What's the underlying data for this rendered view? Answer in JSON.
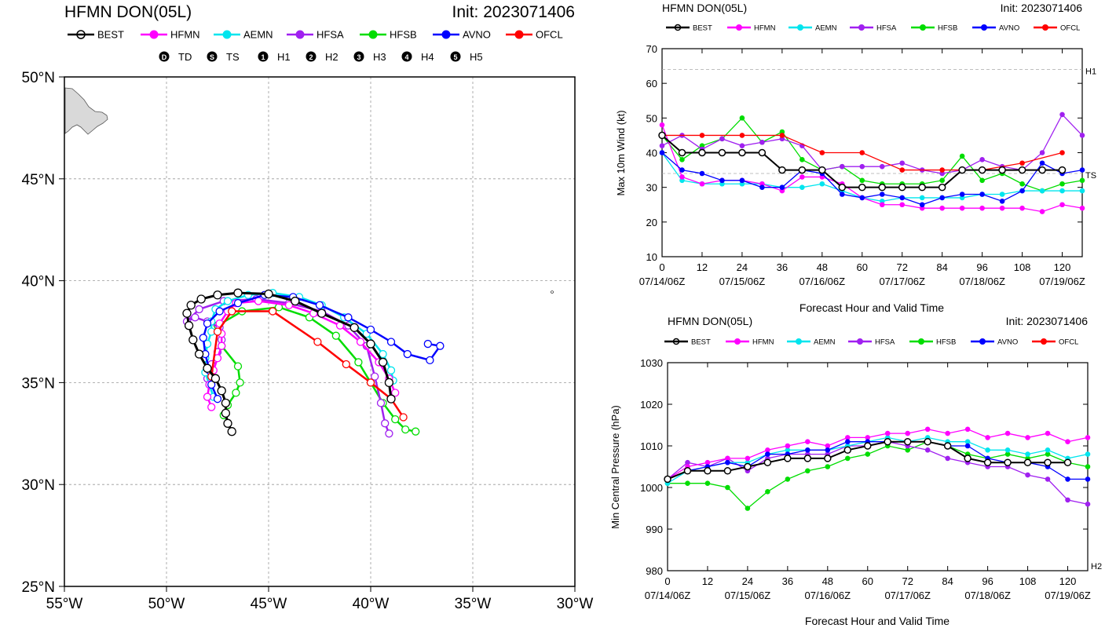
{
  "colors": {
    "BEST": "#000000",
    "HFMN": "#ff00ff",
    "AEMN": "#00e5ee",
    "HFSA": "#a020f0",
    "HFSB": "#00dd00",
    "AVNO": "#0000ff",
    "OFCL": "#ff0000"
  },
  "legend": [
    "BEST",
    "HFMN",
    "AEMN",
    "HFSA",
    "HFSB",
    "AVNO",
    "OFCL"
  ],
  "map": {
    "title": "HFMN DON(05L)",
    "init": "Init: 2023071406",
    "intensity_legend": [
      {
        "sym": "D",
        "label": "TD"
      },
      {
        "sym": "S",
        "label": "TS"
      },
      {
        "sym": "1",
        "label": "H1"
      },
      {
        "sym": "2",
        "label": "H2"
      },
      {
        "sym": "3",
        "label": "H3"
      },
      {
        "sym": "4",
        "label": "H4"
      },
      {
        "sym": "5",
        "label": "H5"
      }
    ],
    "lon_labels": [
      "55°W",
      "50°W",
      "45°W",
      "40°W",
      "35°W",
      "30°W"
    ],
    "lat_labels": [
      "50°N",
      "45°N",
      "40°N",
      "35°N",
      "30°N",
      "25°N"
    ]
  },
  "wind": {
    "title": "HFMN DON(05L)",
    "init": "Init: 2023071406",
    "ylabel": "Max 10m Wind (kt)",
    "xlabel": "Forecast Hour and Valid Time",
    "yticks": [
      "10",
      "20",
      "30",
      "40",
      "50",
      "60",
      "70"
    ],
    "xticks": [
      "0",
      "12",
      "24",
      "36",
      "48",
      "60",
      "72",
      "84",
      "96",
      "108",
      "120"
    ],
    "dates": [
      "07/14/06Z",
      "07/15/06Z",
      "07/16/06Z",
      "07/17/06Z",
      "07/18/06Z",
      "07/19/06Z"
    ],
    "ref_labels": [
      "H1",
      "TS"
    ]
  },
  "pres": {
    "title": "HFMN DON(05L)",
    "init": "Init: 2023071406",
    "ylabel": "Min Central Pressure (hPa)",
    "xlabel": "Forecast Hour and Valid Time",
    "yticks": [
      "980",
      "990",
      "1000",
      "1010",
      "1020",
      "1030"
    ],
    "xticks": [
      "0",
      "12",
      "24",
      "36",
      "48",
      "60",
      "72",
      "84",
      "96",
      "108",
      "120"
    ],
    "dates": [
      "07/14/06Z",
      "07/15/06Z",
      "07/16/06Z",
      "07/17/06Z",
      "07/18/06Z",
      "07/19/06Z"
    ],
    "ref_labels": [
      "H2"
    ]
  },
  "chart_data": [
    {
      "type": "scatter",
      "title": "HFMN DON(05L)",
      "xlim": [
        -55,
        -30
      ],
      "ylim": [
        25,
        50
      ],
      "series": [
        {
          "name": "BEST",
          "lon": [
            -46.8,
            -47.0,
            -47.1,
            -47.1,
            -47.3,
            -47.6,
            -48.0,
            -48.4,
            -48.7,
            -48.9,
            -49.0,
            -48.8,
            -48.3,
            -47.5,
            -46.5,
            -45.0,
            -43.7,
            -42.4,
            -40.8,
            -40.0,
            -39.4,
            -39.1,
            -39.0
          ],
          "lat": [
            32.6,
            33.0,
            33.5,
            34.0,
            34.6,
            35.2,
            35.7,
            36.4,
            37.1,
            37.8,
            38.4,
            38.8,
            39.1,
            39.3,
            39.4,
            39.35,
            39.0,
            38.4,
            37.7,
            36.9,
            36.0,
            35.0,
            34.2
          ]
        },
        {
          "name": "HFMN",
          "lon": [
            -47.8,
            -48.0,
            -47.9,
            -47.7,
            -47.5,
            -47.3,
            -47.3,
            -47.4,
            -47.0,
            -46.6,
            -45.5,
            -44.0,
            -42.8,
            -41.5,
            -40.5,
            -39.6,
            -39.1,
            -38.8
          ],
          "lat": [
            33.8,
            34.3,
            34.9,
            35.6,
            36.2,
            36.8,
            37.4,
            37.9,
            38.5,
            38.9,
            39.0,
            38.8,
            38.4,
            37.8,
            37.0,
            36.0,
            35.2,
            34.5
          ]
        },
        {
          "name": "AEMN",
          "lon": [
            -47.7,
            -47.9,
            -48.1,
            -48.1,
            -48.0,
            -47.8,
            -47.8,
            -47.6,
            -47.0,
            -46.0,
            -44.8,
            -43.5,
            -42.4,
            -41.3,
            -40.2,
            -39.4,
            -39.0,
            -38.9
          ],
          "lat": [
            34.3,
            34.9,
            35.5,
            36.2,
            36.9,
            37.5,
            38.0,
            38.6,
            39.0,
            39.3,
            39.4,
            39.2,
            38.8,
            38.2,
            37.4,
            36.4,
            35.6,
            35.1
          ]
        },
        {
          "name": "HFSA",
          "lon": [
            -48.0,
            -47.8,
            -47.5,
            -47.3,
            -47.4,
            -48.0,
            -48.6,
            -49.0,
            -48.4,
            -47.2,
            -45.6,
            -44.0,
            -42.4,
            -41.1,
            -40.2,
            -39.8,
            -39.5,
            -39.3,
            -39.1
          ],
          "lat": [
            35.2,
            35.9,
            36.5,
            37.1,
            37.7,
            38.0,
            38.2,
            38.0,
            38.6,
            39.0,
            39.1,
            38.9,
            38.5,
            37.8,
            36.8,
            35.3,
            34.0,
            33.0,
            32.5
          ]
        },
        {
          "name": "HFSB",
          "lon": [
            -47.2,
            -47.0,
            -46.6,
            -46.4,
            -46.5,
            -47.3,
            -47.5,
            -46.3,
            -44.5,
            -43.0,
            -41.7,
            -40.6,
            -40.0,
            -39.4,
            -38.8,
            -38.3,
            -37.8
          ],
          "lat": [
            33.4,
            33.9,
            34.5,
            35.0,
            35.8,
            36.8,
            37.8,
            38.5,
            38.7,
            38.2,
            37.3,
            36.0,
            35.0,
            34.0,
            33.2,
            32.7,
            32.6
          ]
        },
        {
          "name": "AVNO",
          "lon": [
            -47.5,
            -47.8,
            -47.9,
            -48.1,
            -48.2,
            -48.0,
            -47.4,
            -46.5,
            -45.2,
            -43.8,
            -42.5,
            -41.1,
            -40.0,
            -39.0,
            -38.2,
            -37.1,
            -36.6,
            -37.2
          ],
          "lat": [
            34.2,
            34.9,
            35.6,
            36.4,
            37.2,
            37.9,
            38.5,
            38.9,
            39.3,
            39.2,
            38.8,
            38.2,
            37.6,
            37.0,
            36.4,
            36.1,
            36.8,
            36.9
          ]
        },
        {
          "name": "OFCL",
          "lon": [
            -47.8,
            -47.5,
            -46.8,
            -44.8,
            -42.6,
            -41.2,
            -40.0,
            -39.0,
            -38.4
          ],
          "lat": [
            35.3,
            37.5,
            38.5,
            38.5,
            37.0,
            35.9,
            35.0,
            34.2,
            33.3
          ]
        }
      ]
    },
    {
      "type": "line",
      "title": "HFMN DON(05L)",
      "xlabel": "Forecast Hour and Valid Time",
      "ylabel": "Max 10m Wind (kt)",
      "xlim": [
        0,
        126
      ],
      "ylim": [
        10,
        70
      ],
      "reference_lines": [
        {
          "label": "H1",
          "value": 64
        },
        {
          "label": "TS",
          "value": 34
        }
      ],
      "series": [
        {
          "name": "BEST",
          "x": [
            0,
            6,
            12,
            18,
            24,
            30,
            36,
            42,
            48,
            54,
            60,
            66,
            72,
            78,
            84,
            90,
            96,
            102,
            108,
            114,
            120
          ],
          "y": [
            45,
            40,
            40,
            40,
            40,
            40,
            35,
            35,
            35,
            30,
            30,
            30,
            30,
            30,
            30,
            35,
            35,
            35,
            35,
            35,
            35
          ]
        },
        {
          "name": "HFMN",
          "x": [
            0,
            6,
            12,
            18,
            24,
            30,
            36,
            42,
            48,
            54,
            60,
            66,
            72,
            78,
            84,
            90,
            96,
            102,
            108,
            114,
            120,
            126
          ],
          "y": [
            48,
            33,
            31,
            32,
            32,
            31,
            29,
            33,
            33,
            31,
            27,
            25,
            25,
            24,
            24,
            24,
            24,
            24,
            24,
            23,
            25,
            24
          ]
        },
        {
          "name": "AEMN",
          "x": [
            0,
            6,
            12,
            18,
            24,
            30,
            36,
            42,
            48,
            54,
            60,
            66,
            72,
            78,
            84,
            90,
            96,
            102,
            108,
            114,
            120,
            126
          ],
          "y": [
            40,
            32,
            31,
            31,
            31,
            31,
            30,
            30,
            31,
            29,
            27,
            26,
            27,
            27,
            27,
            27,
            28,
            28,
            29,
            29,
            29,
            29
          ]
        },
        {
          "name": "HFSA",
          "x": [
            0,
            6,
            12,
            18,
            24,
            30,
            36,
            42,
            48,
            54,
            60,
            66,
            72,
            78,
            84,
            90,
            96,
            102,
            108,
            114,
            120,
            126
          ],
          "y": [
            42,
            45,
            41,
            44,
            42,
            43,
            44,
            42,
            35,
            36,
            36,
            36,
            37,
            35,
            34,
            35,
            38,
            36,
            35,
            40,
            51,
            45
          ]
        },
        {
          "name": "HFSB",
          "x": [
            0,
            6,
            12,
            18,
            24,
            30,
            36,
            42,
            48,
            54,
            60,
            66,
            72,
            78,
            84,
            90,
            96,
            102,
            108,
            114,
            120,
            126
          ],
          "y": [
            45,
            38,
            42,
            44,
            50,
            43,
            46,
            38,
            35,
            36,
            32,
            31,
            31,
            31,
            32,
            39,
            32,
            34,
            31,
            29,
            31,
            32
          ]
        },
        {
          "name": "AVNO",
          "x": [
            0,
            6,
            12,
            18,
            24,
            30,
            36,
            42,
            48,
            54,
            60,
            66,
            72,
            78,
            84,
            90,
            96,
            102,
            108,
            114,
            120,
            126
          ],
          "y": [
            40,
            35,
            34,
            32,
            32,
            30,
            30,
            35,
            34,
            28,
            27,
            28,
            27,
            25,
            27,
            28,
            28,
            26,
            29,
            37,
            34,
            35
          ]
        },
        {
          "name": "OFCL",
          "x": [
            0,
            12,
            24,
            36,
            48,
            60,
            72,
            84,
            96,
            108,
            120
          ],
          "y": [
            45,
            45,
            45,
            45,
            40,
            40,
            35,
            35,
            35,
            37,
            40
          ]
        }
      ]
    },
    {
      "type": "line",
      "title": "HFMN DON(05L)",
      "xlabel": "Forecast Hour and Valid Time",
      "ylabel": "Min Central Pressure (hPa)",
      "xlim": [
        0,
        126
      ],
      "ylim": [
        980,
        1030
      ],
      "reference_lines": [
        {
          "label": "H2",
          "value": 979
        }
      ],
      "series": [
        {
          "name": "BEST",
          "x": [
            0,
            6,
            12,
            18,
            24,
            30,
            36,
            42,
            48,
            54,
            60,
            66,
            72,
            78,
            84,
            90,
            96,
            102,
            108,
            114,
            120
          ],
          "y": [
            1002,
            1004,
            1004,
            1004,
            1005,
            1006,
            1007,
            1007,
            1007,
            1009,
            1010,
            1011,
            1011,
            1011,
            1010,
            1007,
            1006,
            1006,
            1006,
            1006,
            1006
          ]
        },
        {
          "name": "HFMN",
          "x": [
            0,
            6,
            12,
            18,
            24,
            30,
            36,
            42,
            48,
            54,
            60,
            66,
            72,
            78,
            84,
            90,
            96,
            102,
            108,
            114,
            120,
            126
          ],
          "y": [
            1002,
            1005,
            1006,
            1007,
            1007,
            1009,
            1010,
            1011,
            1010,
            1012,
            1012,
            1013,
            1013,
            1014,
            1013,
            1014,
            1012,
            1013,
            1012,
            1013,
            1011,
            1012
          ]
        },
        {
          "name": "AEMN",
          "x": [
            0,
            6,
            12,
            18,
            24,
            30,
            36,
            42,
            48,
            54,
            60,
            66,
            72,
            78,
            84,
            90,
            96,
            102,
            108,
            114,
            120,
            126
          ],
          "y": [
            1001,
            1004,
            1005,
            1006,
            1006,
            1008,
            1009,
            1009,
            1009,
            1010,
            1011,
            1012,
            1011,
            1012,
            1011,
            1011,
            1009,
            1009,
            1008,
            1009,
            1007,
            1008
          ]
        },
        {
          "name": "HFSA",
          "x": [
            0,
            6,
            12,
            18,
            24,
            30,
            36,
            42,
            48,
            54,
            60,
            66,
            72,
            78,
            84,
            90,
            96,
            102,
            108,
            114,
            120,
            126
          ],
          "y": [
            1002,
            1006,
            1005,
            1007,
            1004,
            1007,
            1008,
            1008,
            1008,
            1010,
            1010,
            1011,
            1010,
            1009,
            1007,
            1006,
            1005,
            1005,
            1003,
            1002,
            997,
            996
          ]
        },
        {
          "name": "HFSB",
          "x": [
            0,
            6,
            12,
            18,
            24,
            30,
            36,
            42,
            48,
            54,
            60,
            66,
            72,
            78,
            84,
            90,
            96,
            102,
            108,
            114,
            120,
            126
          ],
          "y": [
            1001,
            1001,
            1001,
            1000,
            995,
            999,
            1002,
            1004,
            1005,
            1007,
            1008,
            1010,
            1009,
            1011,
            1010,
            1008,
            1007,
            1008,
            1007,
            1008,
            1006,
            1005
          ]
        },
        {
          "name": "AVNO",
          "x": [
            0,
            6,
            12,
            18,
            24,
            30,
            36,
            42,
            48,
            54,
            60,
            66,
            72,
            78,
            84,
            90,
            96,
            102,
            108,
            114,
            120,
            126
          ],
          "y": [
            1002,
            1004,
            1005,
            1006,
            1005,
            1008,
            1008,
            1009,
            1009,
            1011,
            1011,
            1011,
            1011,
            1011,
            1010,
            1010,
            1007,
            1006,
            1006,
            1005,
            1002,
            1002
          ]
        },
        {
          "name": "OFCL",
          "x": [],
          "y": []
        }
      ]
    }
  ]
}
